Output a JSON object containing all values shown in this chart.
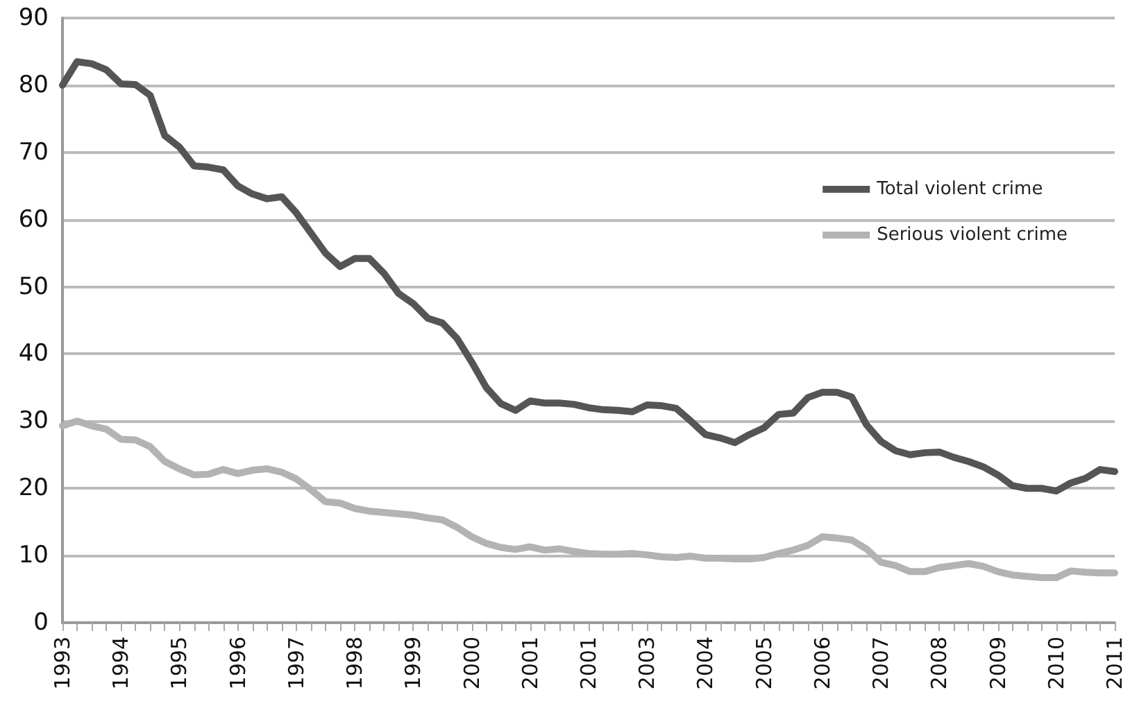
{
  "chart_data": {
    "type": "line",
    "categories": [
      "1993",
      null,
      null,
      null,
      "1994",
      null,
      null,
      null,
      "1995",
      null,
      null,
      null,
      "1996",
      null,
      null,
      null,
      "1997",
      null,
      null,
      null,
      "1998",
      null,
      null,
      null,
      "1999",
      null,
      null,
      null,
      "2000",
      null,
      null,
      null,
      "2001",
      null,
      null,
      null,
      "2001",
      null,
      null,
      null,
      "2003",
      null,
      null,
      null,
      "2004",
      null,
      null,
      null,
      "2005",
      null,
      null,
      null,
      "2006",
      null,
      null,
      null,
      "2007",
      null,
      null,
      null,
      "2008",
      null,
      null,
      null,
      "2009",
      null,
      null,
      null,
      "2010",
      null,
      null,
      null,
      "2011"
    ],
    "series": [
      {
        "name": "Total violent crime",
        "color": "#555555",
        "values": [
          80,
          83.5,
          83.2,
          82.3,
          80.2,
          80.1,
          78.5,
          72.5,
          70.8,
          68,
          67.8,
          67.4,
          65,
          63.8,
          63.1,
          63.4,
          61,
          58,
          55,
          53,
          54.2,
          54.2,
          52,
          49,
          47.5,
          45.3,
          44.6,
          42.3,
          38.8,
          35,
          32.6,
          31.6,
          33,
          32.7,
          32.7,
          32.5,
          32,
          31.7,
          31.6,
          31.4,
          32.4,
          32.3,
          31.9,
          30,
          28,
          27.5,
          26.8,
          28,
          29,
          31,
          31.2,
          33.5,
          34.3,
          34.3,
          33.6,
          29.5,
          27,
          25.6,
          25,
          25.3,
          25.4,
          24.6,
          24,
          23.2,
          22,
          20.4,
          20,
          20,
          19.6,
          20.8,
          21.5,
          22.8,
          22.5
        ]
      },
      {
        "name": "Serious violent crime",
        "color": "#b3b3b3",
        "values": [
          29.3,
          30,
          29.3,
          28.8,
          27.3,
          27.2,
          26.2,
          24,
          22.9,
          22,
          22.1,
          22.8,
          22.2,
          22.7,
          22.9,
          22.4,
          21.4,
          19.8,
          18,
          17.8,
          17,
          16.6,
          16.4,
          16.2,
          16,
          15.6,
          15.3,
          14.2,
          12.8,
          11.8,
          11.2,
          10.9,
          11.3,
          10.8,
          11,
          10.6,
          10.3,
          10.2,
          10.2,
          10.3,
          10.1,
          9.8,
          9.7,
          9.9,
          9.6,
          9.6,
          9.5,
          9.5,
          9.7,
          10.3,
          10.8,
          11.5,
          12.8,
          12.6,
          12.3,
          11,
          9,
          8.5,
          7.6,
          7.6,
          8.2,
          8.5,
          8.8,
          8.4,
          7.6,
          7.1,
          6.9,
          6.7,
          6.7,
          7.7,
          7.5,
          7.4,
          7.4
        ]
      }
    ],
    "ylim": [
      0,
      90
    ],
    "yticks": [
      0,
      10,
      20,
      30,
      40,
      50,
      60,
      70,
      80,
      90
    ],
    "grid": "y",
    "legend": "right",
    "marker": "none",
    "line_style": "solid"
  }
}
